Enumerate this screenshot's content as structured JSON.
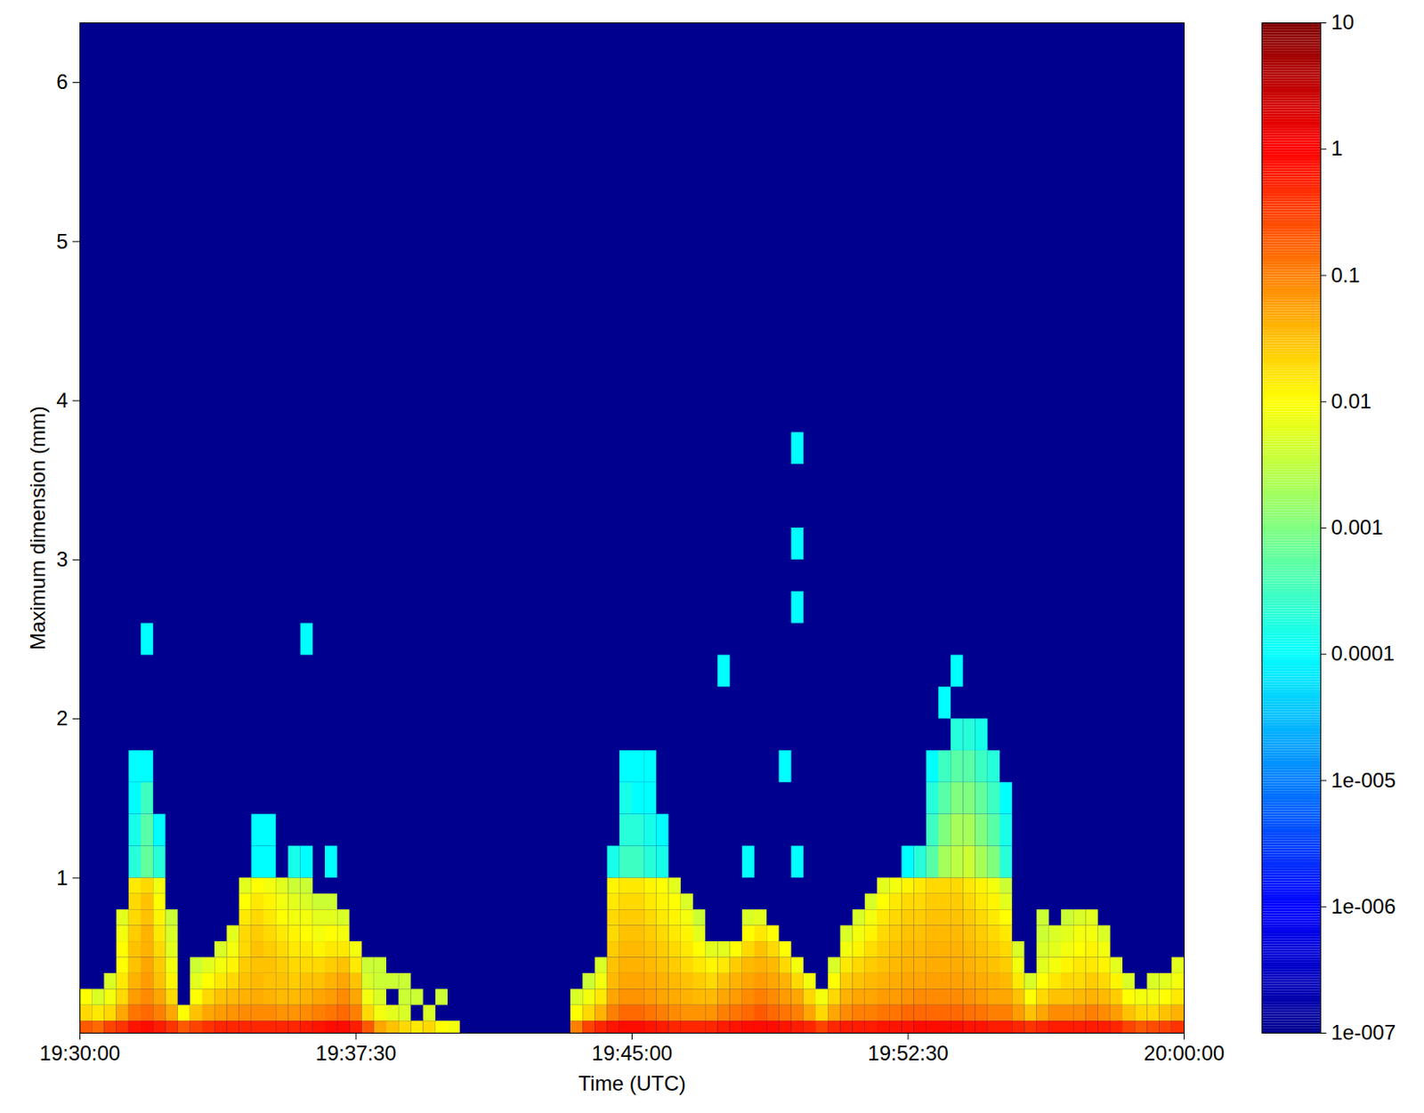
{
  "chart_data": {
    "type": "heatmap",
    "x_label": "Time (UTC)",
    "y_label": "Maximum dimension (mm)",
    "xlim": [
      "19:30:00",
      "20:00:00"
    ],
    "xticks": [
      "19:30:00",
      "19:37:30",
      "19:45:00",
      "19:52:30",
      "20:00:00"
    ],
    "ylim": [
      0.025,
      6.375
    ],
    "yticks": [
      1,
      2,
      3,
      4,
      5,
      6
    ],
    "heatmap": {
      "time_bins": [
        "19:30:00",
        "19:30:20",
        "19:30:40",
        "19:31:00",
        "19:31:20",
        "19:31:40",
        "19:32:00",
        "19:32:20",
        "19:32:40",
        "19:33:00",
        "19:33:20",
        "19:33:40",
        "19:34:00",
        "19:34:20",
        "19:34:40",
        "19:35:00",
        "19:35:20",
        "19:35:40",
        "19:36:00",
        "19:36:20",
        "19:36:40",
        "19:37:00",
        "19:37:20",
        "19:37:40",
        "19:38:00",
        "19:38:20",
        "19:38:40",
        "19:39:00",
        "19:39:20",
        "19:39:40",
        "19:40:00",
        "19:40:20",
        "19:40:40",
        "19:41:00",
        "19:41:20",
        "19:41:40",
        "19:42:00",
        "19:42:20",
        "19:42:40",
        "19:43:00",
        "19:43:20",
        "19:43:40",
        "19:44:00",
        "19:44:20",
        "19:44:40",
        "19:45:00",
        "19:45:20",
        "19:45:40",
        "19:46:00",
        "19:46:20",
        "19:46:40",
        "19:47:00",
        "19:47:20",
        "19:47:40",
        "19:48:00",
        "19:48:20",
        "19:48:40",
        "19:49:00",
        "19:49:20",
        "19:49:40",
        "19:50:00",
        "19:50:20",
        "19:50:40",
        "19:51:00",
        "19:51:20",
        "19:51:40",
        "19:52:00",
        "19:52:20",
        "19:52:40",
        "19:53:00",
        "19:53:20",
        "19:53:40",
        "19:54:00",
        "19:54:20",
        "19:54:40",
        "19:55:00",
        "19:55:20",
        "19:55:40",
        "19:56:00",
        "19:56:20",
        "19:56:40",
        "19:57:00",
        "19:57:20",
        "19:57:40",
        "19:58:00",
        "19:58:20",
        "19:58:40",
        "19:59:00",
        "19:59:20",
        "19:59:40",
        "20:00:00"
      ],
      "size_bins": [
        0.025,
        0.1,
        0.2,
        0.3,
        0.4,
        0.5,
        0.6,
        0.7,
        0.8,
        0.9,
        1.0,
        1.2,
        1.4,
        1.6,
        1.8,
        2.0,
        2.2,
        2.4,
        2.6,
        2.8,
        3.0,
        3.2,
        3.4,
        3.6,
        3.8
      ],
      "values": [
        [
          0.2,
          0.02,
          0.01
        ],
        [
          0.15,
          0.015,
          0.005
        ],
        [
          0.3,
          0.02,
          0.008,
          0.005
        ],
        [
          0.4,
          0.05,
          0.02,
          0.015,
          0.01,
          0.01,
          0.008,
          0.006
        ],
        [
          0.7,
          0.12,
          0.06,
          0.04,
          0.03,
          0.03,
          0.025,
          0.02,
          0.02,
          0.015,
          0.0002,
          0.00015,
          0.0001,
          0.0001
        ],
        [
          0.8,
          0.15,
          0.08,
          0.06,
          0.05,
          0.04,
          0.04,
          0.03,
          0.03,
          0.02,
          0.0006,
          0.0005,
          0.0003,
          0.0001,
          null,
          null,
          null,
          0.0001
        ],
        [
          0.6,
          0.1,
          0.05,
          0.03,
          0.025,
          0.02,
          0.015,
          0.012,
          0.01,
          0.008,
          0.0002,
          0.0001
        ],
        [
          0.4,
          0.05,
          0.02,
          0.012,
          0.008,
          0.006,
          0.005,
          0.004
        ],
        [
          0.2,
          0.01
        ],
        [
          0.3,
          0.03,
          0.01,
          0.006,
          0.004
        ],
        [
          0.4,
          0.05,
          0.02,
          0.01,
          0.006
        ],
        [
          0.5,
          0.06,
          0.03,
          0.015,
          0.008,
          0.005
        ],
        [
          0.5,
          0.07,
          0.035,
          0.02,
          0.012,
          0.008,
          0.006
        ],
        [
          0.5,
          0.08,
          0.04,
          0.03,
          0.025,
          0.02,
          0.02,
          0.015,
          0.01,
          0.006
        ],
        [
          0.5,
          0.08,
          0.045,
          0.035,
          0.03,
          0.03,
          0.025,
          0.02,
          0.015,
          0.01,
          0.0001,
          0.0001
        ],
        [
          0.5,
          0.08,
          0.04,
          0.03,
          0.03,
          0.025,
          0.02,
          0.015,
          0.012,
          0.008,
          0.0001,
          0.0001
        ],
        [
          0.5,
          0.07,
          0.035,
          0.03,
          0.025,
          0.02,
          0.015,
          0.01,
          0.008,
          0.006
        ],
        [
          0.5,
          0.07,
          0.035,
          0.025,
          0.02,
          0.015,
          0.012,
          0.008,
          0.006,
          0.004,
          0.00015
        ],
        [
          0.6,
          0.08,
          0.04,
          0.03,
          0.02,
          0.015,
          0.01,
          0.008,
          0.005,
          0.004,
          0.0001,
          null,
          null,
          null,
          null,
          null,
          null,
          0.0001
        ],
        [
          0.7,
          0.1,
          0.05,
          0.03,
          0.02,
          0.012,
          0.008,
          0.006,
          0.004
        ],
        [
          0.8,
          0.12,
          0.06,
          0.04,
          0.025,
          0.015,
          0.01,
          0.006,
          0.004,
          null,
          0.0001
        ],
        [
          0.8,
          0.15,
          0.08,
          0.05,
          0.03,
          0.015,
          0.008,
          0.005
        ],
        [
          0.6,
          0.1,
          0.05,
          0.03,
          0.015,
          0.008
        ],
        [
          0.2,
          0.02,
          0.008,
          0.005,
          0.004
        ],
        [
          0.05,
          0.008,
          0.005,
          0.004,
          0.004
        ],
        [
          0.03,
          0.006,
          null,
          0.004
        ],
        [
          0.02,
          0.005,
          0.004,
          0.004
        ],
        [
          0.015,
          null,
          0.004
        ],
        [
          0.02,
          0.005
        ],
        [
          0.01,
          null,
          0.004
        ],
        [
          0.008
        ],
        [],
        [],
        [],
        [],
        [],
        [],
        [],
        [],
        [],
        [
          0.1,
          0.01,
          0.005
        ],
        [
          0.3,
          0.02,
          0.008,
          0.004
        ],
        [
          0.5,
          0.04,
          0.015,
          0.008,
          0.005
        ],
        [
          0.7,
          0.1,
          0.05,
          0.035,
          0.03,
          0.025,
          0.02,
          0.02,
          0.015,
          0.012,
          0.00015
        ],
        [
          0.8,
          0.15,
          0.07,
          0.05,
          0.04,
          0.035,
          0.03,
          0.025,
          0.02,
          0.015,
          0.0003,
          0.0002,
          0.00015,
          0.0001
        ],
        [
          0.8,
          0.15,
          0.07,
          0.05,
          0.04,
          0.035,
          0.03,
          0.025,
          0.02,
          0.015,
          0.0003,
          0.0002,
          0.0001,
          0.0001
        ],
        [
          0.7,
          0.12,
          0.06,
          0.045,
          0.035,
          0.03,
          0.025,
          0.02,
          0.015,
          0.012,
          0.0002,
          0.00015,
          0.0001,
          0.0001
        ],
        [
          0.6,
          0.1,
          0.05,
          0.04,
          0.03,
          0.025,
          0.02,
          0.015,
          0.012,
          0.01,
          0.00015,
          0.0001
        ],
        [
          0.5,
          0.08,
          0.045,
          0.035,
          0.025,
          0.02,
          0.015,
          0.012,
          0.01,
          0.006
        ],
        [
          0.5,
          0.07,
          0.04,
          0.03,
          0.02,
          0.015,
          0.012,
          0.008,
          0.005
        ],
        [
          0.5,
          0.07,
          0.035,
          0.025,
          0.015,
          0.01,
          0.006,
          0.004
        ],
        [
          0.5,
          0.07,
          0.035,
          0.02,
          0.012,
          0.006
        ],
        [
          0.6,
          0.1,
          0.05,
          0.03,
          0.015,
          0.006,
          null,
          null,
          null,
          null,
          null,
          null,
          null,
          null,
          null,
          null,
          0.0001
        ],
        [
          0.7,
          0.12,
          0.06,
          0.04,
          0.025,
          0.01
        ],
        [
          0.8,
          0.15,
          0.08,
          0.05,
          0.035,
          0.02,
          0.01,
          0.005,
          null,
          null,
          0.0001
        ],
        [
          0.8,
          0.2,
          0.1,
          0.06,
          0.04,
          0.03,
          0.015,
          0.006
        ],
        [
          0.8,
          0.15,
          0.08,
          0.05,
          0.035,
          0.02,
          0.01
        ],
        [
          0.7,
          0.12,
          0.06,
          0.04,
          0.02,
          0.01,
          null,
          null,
          null,
          null,
          null,
          null,
          null,
          0.0001
        ],
        [
          0.6,
          0.1,
          0.05,
          0.02,
          0.008,
          null,
          null,
          null,
          null,
          null,
          0.0001,
          null,
          null,
          null,
          null,
          null,
          null,
          null,
          0.0001,
          null,
          0.0001,
          null,
          null,
          0.0001
        ],
        [
          0.5,
          0.05,
          0.02,
          0.008
        ],
        [
          0.3,
          0.02,
          0.008
        ],
        [
          0.5,
          0.05,
          0.02,
          0.01,
          0.005
        ],
        [
          0.6,
          0.08,
          0.04,
          0.025,
          0.015,
          0.008,
          0.005
        ],
        [
          0.6,
          0.1,
          0.05,
          0.03,
          0.02,
          0.012,
          0.008,
          0.005
        ],
        [
          0.6,
          0.1,
          0.05,
          0.035,
          0.025,
          0.018,
          0.012,
          0.008,
          0.005
        ],
        [
          0.7,
          0.12,
          0.06,
          0.04,
          0.03,
          0.025,
          0.02,
          0.015,
          0.01,
          0.006
        ],
        [
          0.7,
          0.12,
          0.06,
          0.045,
          0.035,
          0.03,
          0.025,
          0.02,
          0.015,
          0.008
        ],
        [
          0.7,
          0.15,
          0.07,
          0.05,
          0.04,
          0.035,
          0.03,
          0.025,
          0.02,
          0.012,
          0.0001
        ],
        [
          0.8,
          0.15,
          0.08,
          0.05,
          0.04,
          0.035,
          0.03,
          0.025,
          0.02,
          0.015,
          0.0002
        ],
        [
          0.8,
          0.15,
          0.08,
          0.055,
          0.045,
          0.04,
          0.035,
          0.03,
          0.025,
          0.02,
          0.0005,
          0.0003,
          0.0002,
          0.0001
        ],
        [
          0.8,
          0.15,
          0.08,
          0.055,
          0.045,
          0.04,
          0.035,
          0.03,
          0.025,
          0.02,
          0.002,
          0.001,
          0.0005,
          0.0003,
          null,
          0.0001
        ],
        [
          0.8,
          0.15,
          0.08,
          0.055,
          0.045,
          0.04,
          0.035,
          0.03,
          0.025,
          0.02,
          0.003,
          0.002,
          0.001,
          0.0005,
          0.0002,
          null,
          0.0001
        ],
        [
          0.7,
          0.13,
          0.07,
          0.05,
          0.04,
          0.035,
          0.03,
          0.025,
          0.02,
          0.015,
          0.004,
          0.002,
          0.001,
          0.0005,
          0.0002
        ],
        [
          0.7,
          0.12,
          0.06,
          0.045,
          0.035,
          0.03,
          0.025,
          0.02,
          0.015,
          0.012,
          0.002,
          0.001,
          0.0006,
          0.0003,
          0.00015
        ],
        [
          0.6,
          0.1,
          0.05,
          0.04,
          0.03,
          0.025,
          0.02,
          0.015,
          0.012,
          0.008,
          0.001,
          0.0005,
          0.0003,
          0.0002
        ],
        [
          0.6,
          0.1,
          0.05,
          0.035,
          0.025,
          0.02,
          0.015,
          0.01,
          0.006,
          0.004,
          0.0002,
          0.00015,
          0.0001
        ],
        [
          0.5,
          0.06,
          0.03,
          0.015,
          0.008,
          0.005
        ],
        [
          0.4,
          0.03,
          0.01,
          0.005
        ],
        [
          0.5,
          0.05,
          0.02,
          0.01,
          0.006,
          0.005,
          0.004,
          0.004
        ],
        [
          0.6,
          0.08,
          0.03,
          0.015,
          0.008,
          0.006,
          0.005
        ],
        [
          0.6,
          0.08,
          0.03,
          0.02,
          0.012,
          0.008,
          0.006,
          0.004
        ],
        [
          0.6,
          0.08,
          0.035,
          0.02,
          0.015,
          0.01,
          0.008,
          0.005
        ],
        [
          0.6,
          0.1,
          0.04,
          0.025,
          0.015,
          0.012,
          0.008,
          0.006
        ],
        [
          0.6,
          0.08,
          0.035,
          0.02,
          0.012,
          0.008,
          0.005
        ],
        [
          0.5,
          0.06,
          0.025,
          0.012,
          0.006
        ],
        [
          0.3,
          0.03,
          0.01,
          0.005
        ],
        [
          0.2,
          0.02,
          0.008
        ],
        [
          0.25,
          0.02,
          0.008,
          0.005
        ],
        [
          0.3,
          0.03,
          0.01,
          0.006
        ],
        [
          0.4,
          0.04,
          0.015,
          0.008,
          0.006
        ]
      ]
    },
    "colorbar": {
      "log": true,
      "lim": [
        1e-07,
        10
      ],
      "ticks": [
        {
          "value": 1e-07,
          "label": "1e-007"
        },
        {
          "value": 1e-06,
          "label": "1e-006"
        },
        {
          "value": 1e-05,
          "label": "1e-005"
        },
        0.0001,
        0.001,
        0.01,
        0.1,
        1,
        10
      ]
    }
  }
}
